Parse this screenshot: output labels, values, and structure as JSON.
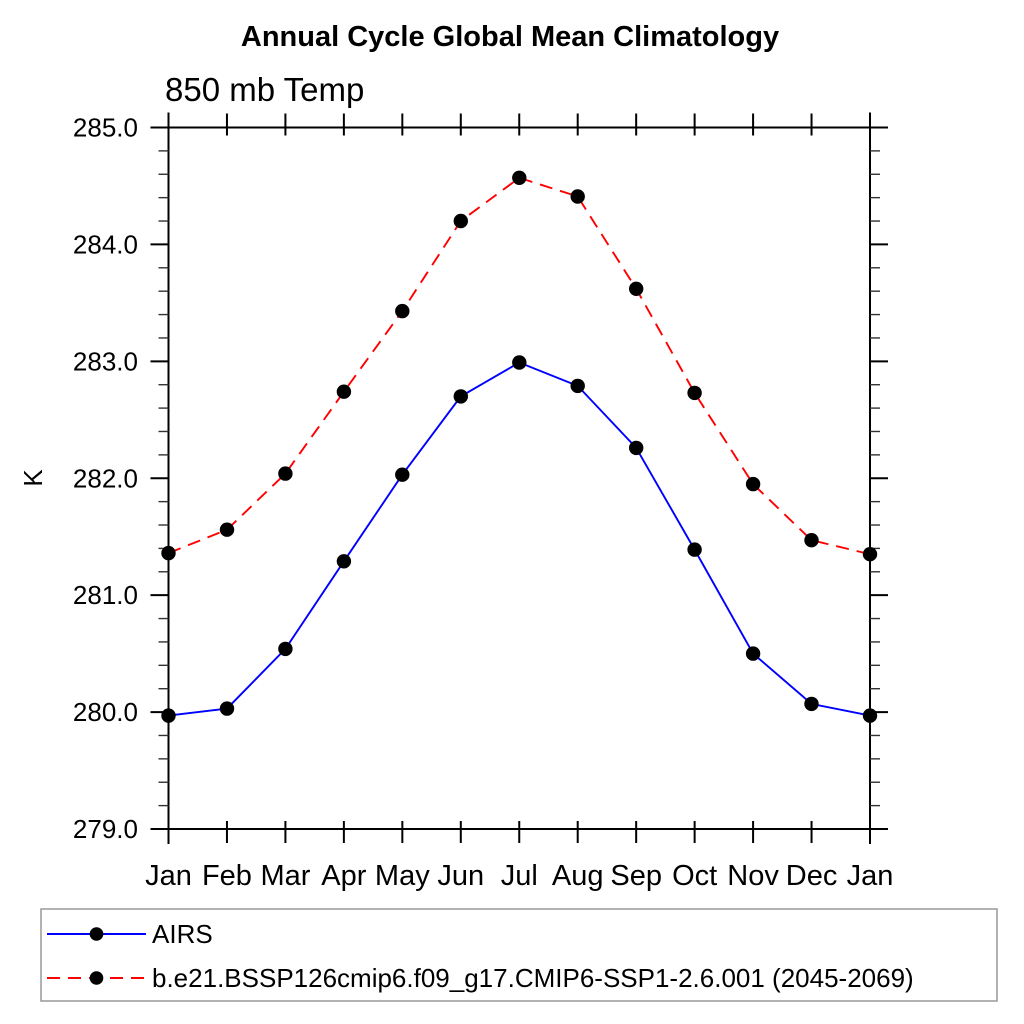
{
  "page": {
    "background": "#ffffff"
  },
  "chart_data": {
    "type": "line",
    "title": "Annual Cycle Global Mean Climatology",
    "subtitle": "850 mb Temp",
    "xlabel": "",
    "ylabel": "K",
    "ylim": [
      279.0,
      285.0
    ],
    "ytick_step": 1.0,
    "yminor_step": 0.2,
    "ytick_labels": [
      "279.0",
      "280.0",
      "281.0",
      "282.0",
      "283.0",
      "284.0",
      "285.0"
    ],
    "categories": [
      "Jan",
      "Feb",
      "Mar",
      "Apr",
      "May",
      "Jun",
      "Jul",
      "Aug",
      "Sep",
      "Oct",
      "Nov",
      "Dec",
      "Jan"
    ],
    "grid": false,
    "legend_position": "bottom",
    "marker": {
      "shape": "circle",
      "color": "#000000"
    },
    "series": [
      {
        "name": "AIRS",
        "color": "#0000ff",
        "line_style": "solid",
        "values": [
          279.97,
          280.03,
          280.54,
          281.29,
          282.03,
          282.7,
          282.99,
          282.79,
          282.26,
          281.39,
          280.5,
          280.07,
          279.97
        ]
      },
      {
        "name": "b.e21.BSSP126cmip6.f09_g17.CMIP6-SSP1-2.6.001 (2045-2069)",
        "color": "#ff0000",
        "line_style": "dashed",
        "values": [
          281.36,
          281.56,
          282.04,
          282.74,
          283.43,
          284.2,
          284.57,
          284.41,
          283.62,
          282.73,
          281.95,
          281.47,
          281.35
        ]
      }
    ]
  },
  "colors": {
    "axis": "#000000",
    "minor_tick": "#333333",
    "legend_border": "#999999",
    "text": "#000000",
    "background": "#ffffff"
  }
}
